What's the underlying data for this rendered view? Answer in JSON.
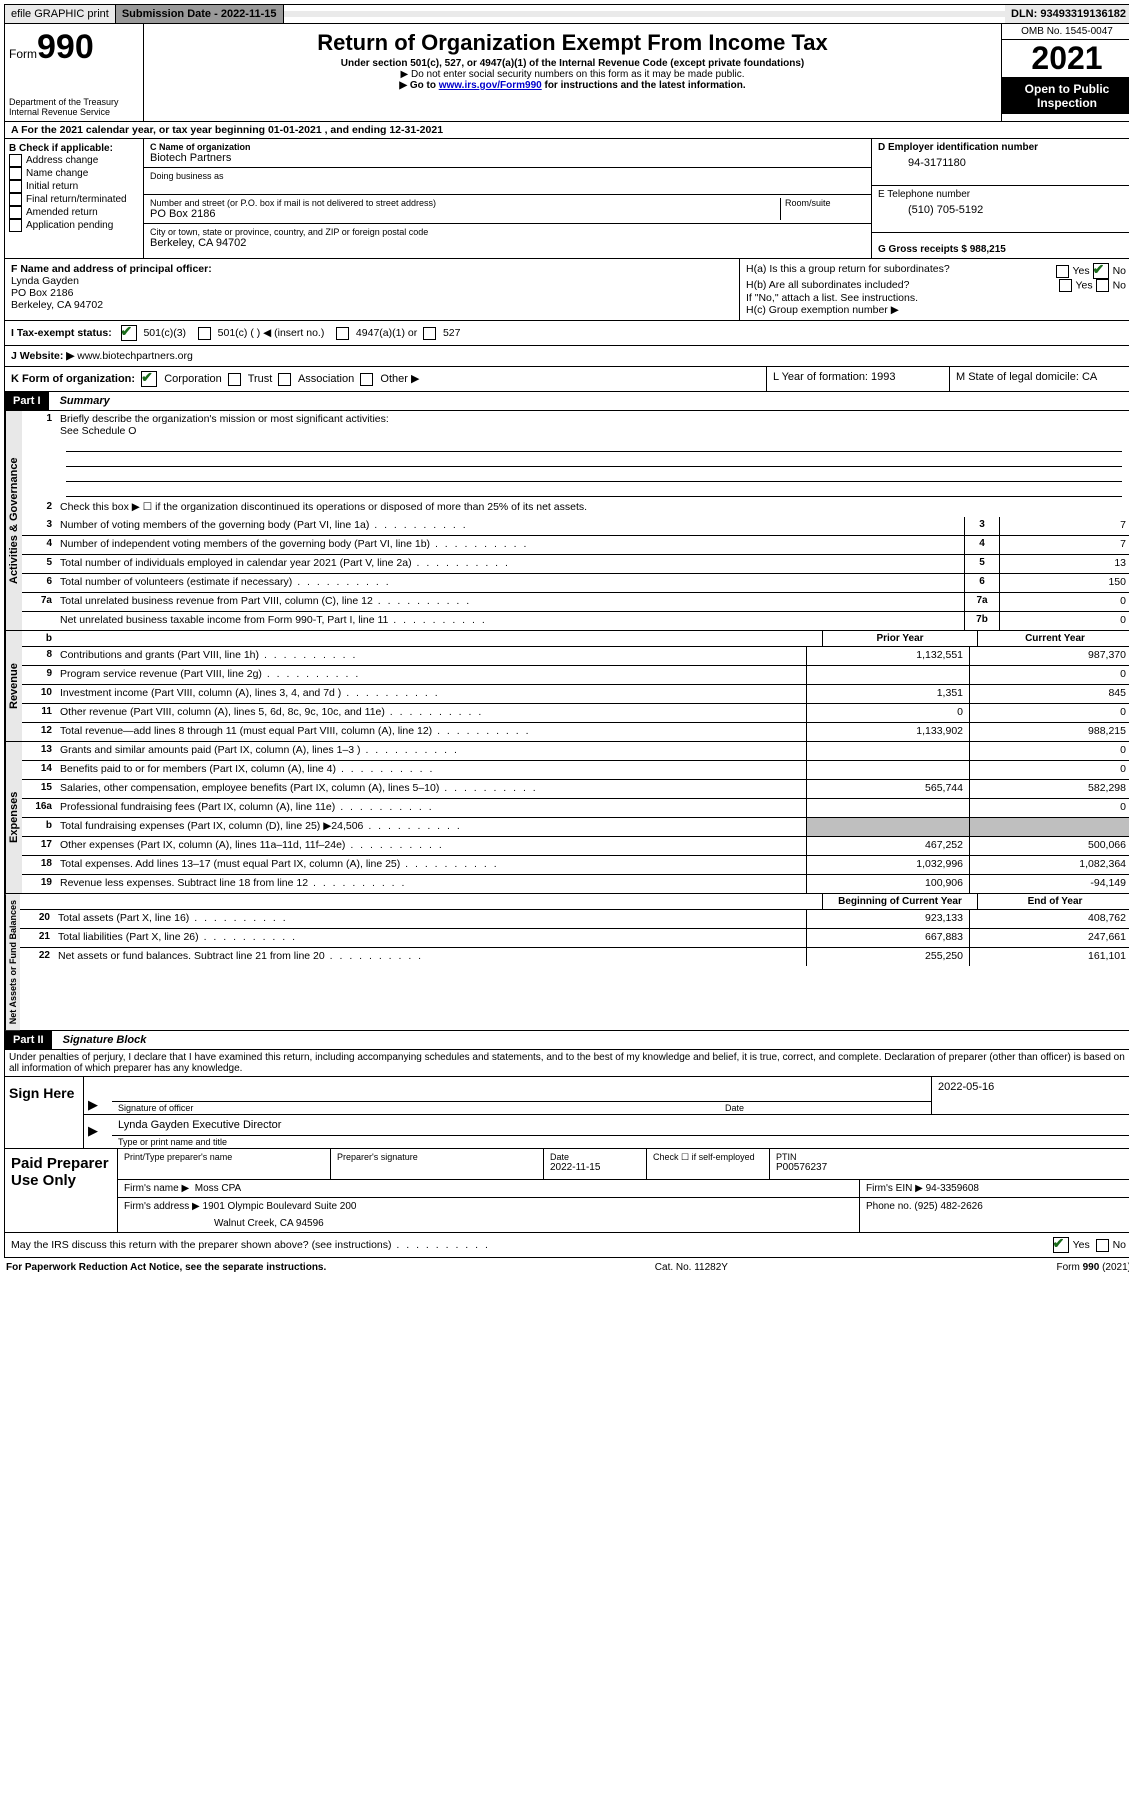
{
  "topbar": {
    "efile": "efile GRAPHIC print",
    "submission_label": "Submission Date - 2022-11-15",
    "dln_label": "DLN: 93493319136182"
  },
  "header": {
    "form_word": "Form",
    "form_num": "990",
    "dept": "Department of the Treasury",
    "irs": "Internal Revenue Service",
    "title": "Return of Organization Exempt From Income Tax",
    "subtitle": "Under section 501(c), 527, or 4947(a)(1) of the Internal Revenue Code (except private foundations)",
    "note1": "▶ Do not enter social security numbers on this form as it may be made public.",
    "note2_pre": "▶ Go to ",
    "note2_link": "www.irs.gov/Form990",
    "note2_post": " for instructions and the latest information.",
    "omb": "OMB No. 1545-0047",
    "year": "2021",
    "inspection": "Open to Public Inspection"
  },
  "section_a": "A For the 2021 calendar year, or tax year beginning 01-01-2021   , and ending 12-31-2021",
  "block_b": {
    "b_label": "B Check if applicable:",
    "b_items": [
      "Address change",
      "Name change",
      "Initial return",
      "Final return/terminated",
      "Amended return",
      "Application pending"
    ],
    "c_label": "C Name of organization",
    "c_name": "Biotech Partners",
    "dba_label": "Doing business as",
    "addr_label": "Number and street (or P.O. box if mail is not delivered to street address)",
    "room_label": "Room/suite",
    "addr": "PO Box 2186",
    "city_label": "City or town, state or province, country, and ZIP or foreign postal code",
    "city": "Berkeley, CA  94702",
    "d_label": "D Employer identification number",
    "d_val": "94-3171180",
    "e_label": "E Telephone number",
    "e_val": "(510) 705-5192",
    "g_label": "G Gross receipts $ 988,215"
  },
  "block_f": {
    "f_label": "F  Name and address of principal officer:",
    "f_name": "Lynda Gayden",
    "f_addr1": "PO Box 2186",
    "f_addr2": "Berkeley, CA  94702",
    "ha": "H(a)  Is this a group return for subordinates?",
    "hb": "H(b)  Are all subordinates included?",
    "hb_note": "If \"No,\" attach a list. See instructions.",
    "hc": "H(c)  Group exemption number ▶",
    "yes": "Yes",
    "no": "No"
  },
  "block_i": {
    "i_label": "I    Tax-exempt status:",
    "opt1": "501(c)(3)",
    "opt2": "501(c) (   ) ◀ (insert no.)",
    "opt3": "4947(a)(1) or",
    "opt4": "527"
  },
  "block_j": {
    "label": "J   Website: ▶",
    "val": "www.biotechpartners.org"
  },
  "block_k": {
    "label": "K Form of organization:",
    "opts": [
      "Corporation",
      "Trust",
      "Association",
      "Other ▶"
    ],
    "l_label": "L Year of formation: 1993",
    "m_label": "M State of legal domicile: CA"
  },
  "part1": {
    "tag": "Part I",
    "title": "Summary",
    "vtab1": "Activities & Governance",
    "vtab2": "Revenue",
    "vtab3": "Expenses",
    "vtab4": "Net Assets or Fund Balances",
    "line1": "Briefly describe the organization's mission or most significant activities:",
    "line1_val": "See Schedule O",
    "line2": "Check this box ▶ ☐  if the organization discontinued its operations or disposed of more than 25% of its net assets.",
    "lines_gov": [
      {
        "n": "3",
        "t": "Number of voting members of the governing body (Part VI, line 1a)",
        "box": "3",
        "v": "7"
      },
      {
        "n": "4",
        "t": "Number of independent voting members of the governing body (Part VI, line 1b)",
        "box": "4",
        "v": "7"
      },
      {
        "n": "5",
        "t": "Total number of individuals employed in calendar year 2021 (Part V, line 2a)",
        "box": "5",
        "v": "13"
      },
      {
        "n": "6",
        "t": "Total number of volunteers (estimate if necessary)",
        "box": "6",
        "v": "150"
      },
      {
        "n": "7a",
        "t": "Total unrelated business revenue from Part VIII, column (C), line 12",
        "box": "7a",
        "v": "0"
      },
      {
        "n": "",
        "t": "Net unrelated business taxable income from Form 990-T, Part I, line 11",
        "box": "7b",
        "v": "0"
      }
    ],
    "hdr_prior": "Prior Year",
    "hdr_current": "Current Year",
    "lines_rev": [
      {
        "n": "8",
        "t": "Contributions and grants (Part VIII, line 1h)",
        "p": "1,132,551",
        "c": "987,370"
      },
      {
        "n": "9",
        "t": "Program service revenue (Part VIII, line 2g)",
        "p": "",
        "c": "0"
      },
      {
        "n": "10",
        "t": "Investment income (Part VIII, column (A), lines 3, 4, and 7d )",
        "p": "1,351",
        "c": "845"
      },
      {
        "n": "11",
        "t": "Other revenue (Part VIII, column (A), lines 5, 6d, 8c, 9c, 10c, and 11e)",
        "p": "0",
        "c": "0"
      },
      {
        "n": "12",
        "t": "Total revenue—add lines 8 through 11 (must equal Part VIII, column (A), line 12)",
        "p": "1,133,902",
        "c": "988,215"
      }
    ],
    "lines_exp": [
      {
        "n": "13",
        "t": "Grants and similar amounts paid (Part IX, column (A), lines 1–3 )",
        "p": "",
        "c": "0"
      },
      {
        "n": "14",
        "t": "Benefits paid to or for members (Part IX, column (A), line 4)",
        "p": "",
        "c": "0"
      },
      {
        "n": "15",
        "t": "Salaries, other compensation, employee benefits (Part IX, column (A), lines 5–10)",
        "p": "565,744",
        "c": "582,298"
      },
      {
        "n": "16a",
        "t": "Professional fundraising fees (Part IX, column (A), line 11e)",
        "p": "",
        "c": "0"
      },
      {
        "n": "b",
        "t": "Total fundraising expenses (Part IX, column (D), line 25) ▶24,506",
        "p": "SHADE",
        "c": "SHADE"
      },
      {
        "n": "17",
        "t": "Other expenses (Part IX, column (A), lines 11a–11d, 11f–24e)",
        "p": "467,252",
        "c": "500,066"
      },
      {
        "n": "18",
        "t": "Total expenses. Add lines 13–17 (must equal Part IX, column (A), line 25)",
        "p": "1,032,996",
        "c": "1,082,364"
      },
      {
        "n": "19",
        "t": "Revenue less expenses. Subtract line 18 from line 12",
        "p": "100,906",
        "c": "-94,149"
      }
    ],
    "hdr_begin": "Beginning of Current Year",
    "hdr_end": "End of Year",
    "lines_net": [
      {
        "n": "20",
        "t": "Total assets (Part X, line 16)",
        "p": "923,133",
        "c": "408,762"
      },
      {
        "n": "21",
        "t": "Total liabilities (Part X, line 26)",
        "p": "667,883",
        "c": "247,661"
      },
      {
        "n": "22",
        "t": "Net assets or fund balances. Subtract line 21 from line 20",
        "p": "255,250",
        "c": "161,101"
      }
    ]
  },
  "part2": {
    "tag": "Part II",
    "title": "Signature Block",
    "decl": "Under penalties of perjury, I declare that I have examined this return, including accompanying schedules and statements, and to the best of my knowledge and belief, it is true, correct, and complete. Declaration of preparer (other than officer) is based on all information of which preparer has any knowledge.",
    "sign_here": "Sign Here",
    "sig_officer": "Signature of officer",
    "sig_date": "2022-05-16",
    "date_label": "Date",
    "officer_name": "Lynda Gayden  Executive Director",
    "type_name": "Type or print name and title",
    "paid": "Paid Preparer Use Only",
    "h_print": "Print/Type preparer's name",
    "h_sig": "Preparer's signature",
    "h_date": "Date",
    "h_date_val": "2022-11-15",
    "h_check": "Check ☐ if self-employed",
    "h_ptin": "PTIN",
    "h_ptin_val": "P00576237",
    "firm_name_label": "Firm's name    ▶",
    "firm_name": "Moss CPA",
    "firm_ein_label": "Firm's EIN ▶",
    "firm_ein": "94-3359608",
    "firm_addr_label": "Firm's address ▶",
    "firm_addr1": "1901 Olympic Boulevard Suite 200",
    "firm_addr2": "Walnut Creek, CA  94596",
    "phone_label": "Phone no.",
    "phone": "(925) 482-2626",
    "discuss": "May the IRS discuss this return with the preparer shown above? (see instructions)"
  },
  "footer": {
    "left": "For Paperwork Reduction Act Notice, see the separate instructions.",
    "mid": "Cat. No. 11282Y",
    "right": "Form 990 (2021)"
  }
}
